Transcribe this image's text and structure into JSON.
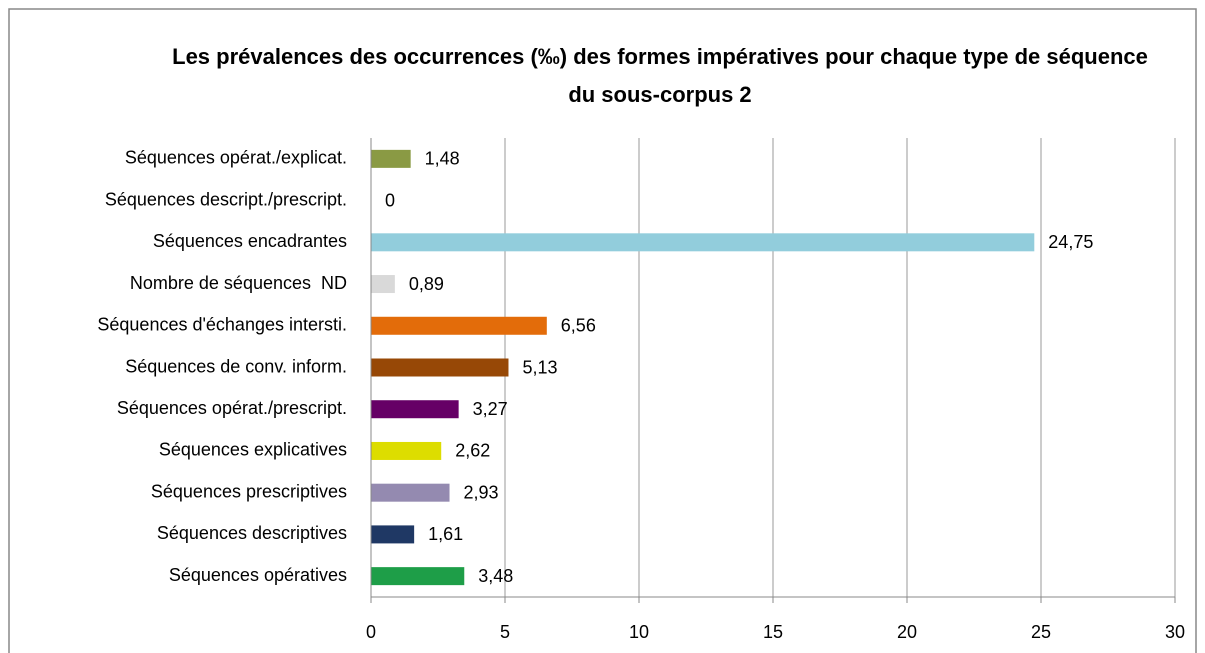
{
  "chart_data": {
    "type": "hbar",
    "title": "Les prévalences des occurrences (‰) des formes impératives pour chaque type de séquence du sous-corpus 2",
    "categories": [
      "Séquences opérat./explicat.",
      "Séquences descript./prescript.",
      "Séquences encadrantes",
      "Nombre de séquences  ND",
      "Séquences d'échanges intersti.",
      "Séquences de conv. inform.",
      "Séquences opérat./prescript.",
      "Séquences explicatives",
      "Séquences prescriptives",
      "Séquences descriptives",
      "Séquences opératives"
    ],
    "values": [
      1.48,
      0,
      24.75,
      0.89,
      6.56,
      5.13,
      3.27,
      2.62,
      2.93,
      1.61,
      3.48
    ],
    "value_labels": [
      "1,48",
      "0",
      "24,75",
      "0,89",
      "6,56",
      "5,13",
      "3,27",
      "2,62",
      "2,93",
      "1,61",
      "3,48"
    ],
    "colors": [
      "#8a9a44",
      "#4f81bd",
      "#92cddc",
      "#d9d9d9",
      "#e36c0a",
      "#974806",
      "#660066",
      "#dddd00",
      "#948ab0",
      "#1f3864",
      "#1e9e48"
    ],
    "xlim": [
      0,
      30
    ],
    "xticks": [
      0,
      5,
      10,
      15,
      20,
      25,
      30
    ],
    "grid": true
  }
}
